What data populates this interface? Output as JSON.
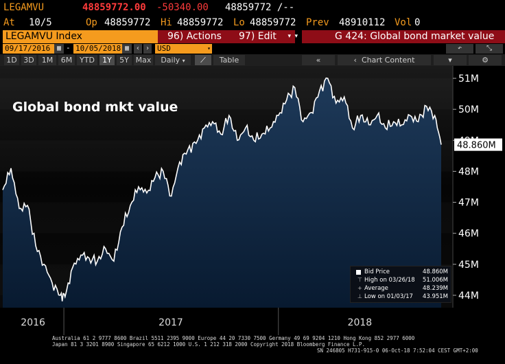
{
  "quote": {
    "ticker": "LEGAMVU",
    "last": "48859772.00",
    "change": "-50340.00",
    "bid_ask": "48859772 /--",
    "at_label": "At",
    "at_value": "10/5",
    "op_label": "Op",
    "op_value": "48859772",
    "hi_label": "Hi",
    "hi_value": "48859772",
    "lo_label": "Lo",
    "lo_value": "48859772",
    "prev_label": "Prev",
    "prev_value": "48910112",
    "vol_label": "Vol",
    "vol_value": "0"
  },
  "menu": {
    "index_label": "LEGAMVU Index",
    "actions": "96) Actions",
    "edit": "97) Edit",
    "function_title": "G 424: Global bond market value"
  },
  "controls": {
    "start_date": "09/17/2016",
    "end_date": "10/05/2018",
    "currency": "USD",
    "ranges": [
      "1D",
      "3D",
      "1M",
      "6M",
      "YTD",
      "1Y",
      "5Y",
      "Max"
    ],
    "selected_range": "1Y",
    "period": "Daily",
    "table_label": "Table",
    "chart_content": "Chart Content",
    "back_arrow": "back-arrow-icon",
    "gear": "gear-icon"
  },
  "chart_data": {
    "type": "area",
    "title": "Global bond mkt value",
    "ylim": [
      43.6,
      51.4
    ],
    "y_unit": "M",
    "y_ticks": [
      "51M",
      "50M",
      "49M",
      "48M",
      "47M",
      "46M",
      "45M",
      "44M"
    ],
    "y_tick_values": [
      51,
      50,
      49,
      48,
      47,
      46,
      45,
      44
    ],
    "x_labels": [
      "2016",
      "2017",
      "2018"
    ],
    "last_value_label": "48.860M",
    "x": [
      "2016-09-19",
      "2016-10-03",
      "2016-10-17",
      "2016-10-31",
      "2016-11-14",
      "2016-11-28",
      "2016-12-12",
      "2016-12-26",
      "2017-01-03",
      "2017-01-16",
      "2017-01-30",
      "2017-02-13",
      "2017-02-27",
      "2017-03-13",
      "2017-03-27",
      "2017-04-10",
      "2017-04-24",
      "2017-05-08",
      "2017-05-22",
      "2017-06-05",
      "2017-06-19",
      "2017-07-03",
      "2017-07-17",
      "2017-07-31",
      "2017-08-14",
      "2017-08-28",
      "2017-09-11",
      "2017-09-25",
      "2017-10-09",
      "2017-10-23",
      "2017-11-06",
      "2017-11-20",
      "2017-12-04",
      "2017-12-18",
      "2018-01-01",
      "2018-01-15",
      "2018-01-29",
      "2018-02-12",
      "2018-02-26",
      "2018-03-12",
      "2018-03-26",
      "2018-04-09",
      "2018-04-23",
      "2018-05-07",
      "2018-05-21",
      "2018-06-04",
      "2018-06-18",
      "2018-07-02",
      "2018-07-16",
      "2018-07-30",
      "2018-08-13",
      "2018-08-27",
      "2018-09-10",
      "2018-09-24",
      "2018-10-05"
    ],
    "values": [
      47.4,
      48.1,
      46.8,
      46.9,
      45.6,
      45.0,
      44.4,
      44.0,
      43.95,
      44.9,
      45.3,
      45.2,
      45.1,
      45.5,
      45.1,
      46.2,
      46.9,
      47.5,
      47.3,
      47.8,
      48.0,
      47.2,
      48.3,
      48.7,
      48.9,
      49.4,
      49.6,
      49.2,
      49.8,
      49.0,
      49.4,
      49.0,
      49.2,
      49.4,
      49.8,
      50.3,
      50.7,
      49.6,
      49.9,
      50.6,
      51.0,
      50.2,
      50.4,
      49.4,
      49.8,
      49.5,
      49.8,
      49.4,
      49.6,
      49.5,
      49.8,
      49.6,
      50.1,
      49.8,
      48.86
    ],
    "series": [
      {
        "name": "Bid Price",
        "values_ref": "values"
      }
    ],
    "legend": [
      {
        "label": "Bid Price",
        "value": "48.860M"
      },
      {
        "label": "High on 03/26/18",
        "value": "51.006M"
      },
      {
        "label": "Average",
        "value": "48.239M"
      },
      {
        "label": "Low on 01/03/17",
        "value": "43.951M"
      }
    ],
    "legend_position": "bottom-right",
    "colors": {
      "line": "#ffffff",
      "fill_top": "#1e3a5a",
      "fill_bottom": "#081a30",
      "bg": "#000000"
    }
  },
  "footer": {
    "line1": "Australia 61 2 9777 8600 Brazil 5511 2395 9000 Europe 44 20 7330 7500 Germany 49 69 9204 1210 Hong Kong 852 2977 6000",
    "line2": "Japan 81 3 3201 8900       Singapore 65 6212 1000       U.S. 1 212 318 2000          Copyright 2018 Bloomberg Finance L.P.",
    "line3": "SN 246805 H731-915-0 06-Oct-18   7:52:04 CEST GMT+2:00"
  }
}
